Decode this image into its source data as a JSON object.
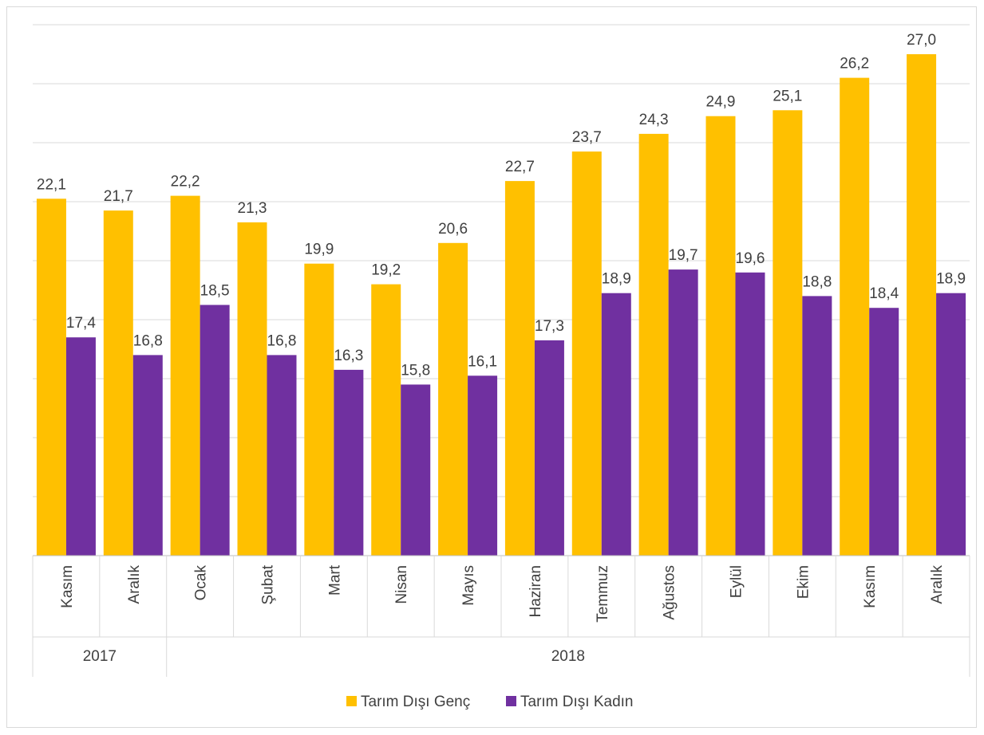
{
  "chart_data": {
    "type": "bar",
    "categories": [
      "Kasım",
      "Aralık",
      "Ocak",
      "Şubat",
      "Mart",
      "Nisan",
      "Mayıs",
      "Haziran",
      "Temmuz",
      "Ağustos",
      "Eylül",
      "Ekim",
      "Kasım",
      "Aralık"
    ],
    "groups": [
      {
        "label": "2017",
        "count": 2
      },
      {
        "label": "2018",
        "count": 12
      }
    ],
    "series": [
      {
        "name": "Tarım Dışı Genç",
        "color": "#FFC000",
        "values": [
          22.1,
          21.7,
          22.2,
          21.3,
          19.9,
          19.2,
          20.6,
          22.7,
          23.7,
          24.3,
          24.9,
          25.1,
          26.2,
          27.0
        ],
        "labels": [
          "22,1",
          "21,7",
          "22,2",
          "21,3",
          "19,9",
          "19,2",
          "20,6",
          "22,7",
          "23,7",
          "24,3",
          "24,9",
          "25,1",
          "26,2",
          "27,0"
        ]
      },
      {
        "name": "Tarım Dışı Kadın",
        "color": "#7030A0",
        "values": [
          17.4,
          16.8,
          18.5,
          16.8,
          16.3,
          15.8,
          16.1,
          17.3,
          18.9,
          19.7,
          19.6,
          18.8,
          18.4,
          18.9
        ],
        "labels": [
          "17,4",
          "16,8",
          "18,5",
          "16,8",
          "16,3",
          "15,8",
          "16,1",
          "17,3",
          "18,9",
          "19,7",
          "19,6",
          "18,8",
          "18,4",
          "18,9"
        ]
      }
    ],
    "ylim": [
      10,
      28
    ],
    "grid": true,
    "legend_position": "bottom"
  }
}
